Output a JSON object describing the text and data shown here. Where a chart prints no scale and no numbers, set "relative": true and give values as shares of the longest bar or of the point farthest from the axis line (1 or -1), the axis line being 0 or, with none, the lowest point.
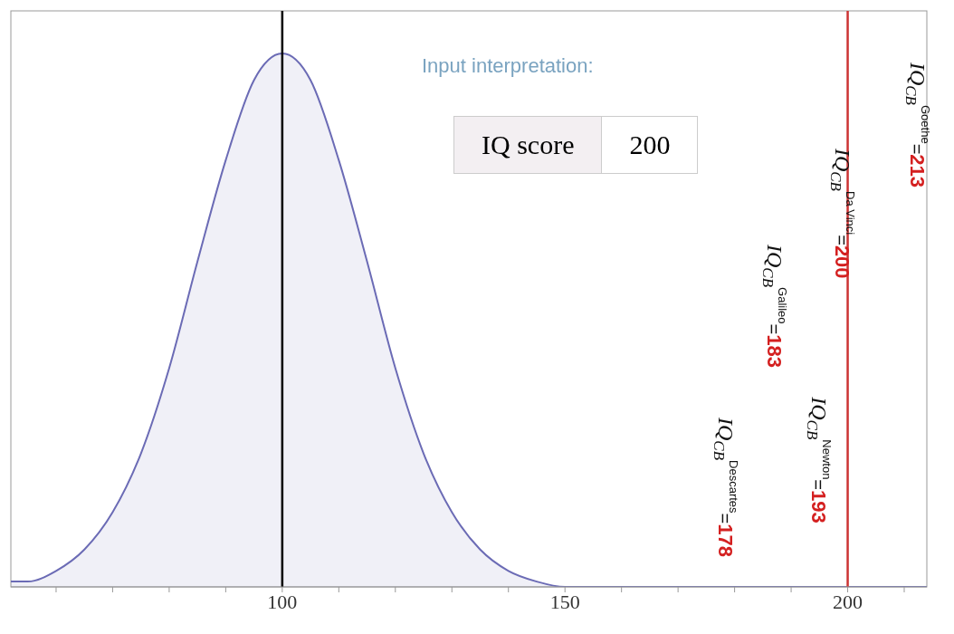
{
  "chart_data": {
    "type": "area",
    "relative": true,
    "x": [
      52,
      55,
      60,
      65,
      70,
      75,
      80,
      85,
      90,
      95,
      100,
      105,
      110,
      115,
      120,
      125,
      130,
      135,
      140,
      145,
      150,
      160,
      214
    ],
    "series": [
      {
        "color": "#6b6bb5",
        "values": [
          0.01,
          0.01,
          0.03,
          0.07,
          0.14,
          0.25,
          0.41,
          0.61,
          0.8,
          0.95,
          1,
          0.95,
          0.8,
          0.61,
          0.41,
          0.25,
          0.14,
          0.07,
          0.03,
          0.01,
          0,
          0,
          0
        ]
      }
    ],
    "xlim": [
      52,
      214
    ],
    "xticks": [
      {
        "value": 60,
        "label": null
      },
      {
        "value": 70,
        "label": null
      },
      {
        "value": 80,
        "label": null
      },
      {
        "value": 90,
        "label": null
      },
      100,
      {
        "value": 110,
        "label": null
      },
      {
        "value": 120,
        "label": null
      },
      {
        "value": 130,
        "label": null
      },
      {
        "value": 140,
        "label": null
      },
      150,
      {
        "value": 160,
        "label": null
      },
      {
        "value": 170,
        "label": null
      },
      {
        "value": 180,
        "label": null
      },
      {
        "value": 190,
        "label": null
      },
      200,
      {
        "value": 210,
        "label": null
      }
    ],
    "ref_lines": [
      {
        "axis": "x",
        "value": 100,
        "color": "#000000"
      },
      {
        "axis": "x",
        "value": 200,
        "color": "#cc3333"
      }
    ],
    "annotations": [
      "Input interpretation:",
      "IQ score",
      "200",
      "IQ$_{CB}$$^{Descartes}$=178",
      "IQ$_{CB}$$^{Galileo}$=183",
      "IQ$_{CB}$$^{Newton}$=193",
      {
        "text": "IQ$_{CB}$$^{Da Vinci}$=200",
        "x": 200,
        "y": 0.7
      },
      "IQ$_{CB}$$^{Goethe}$=213"
    ]
  }
}
